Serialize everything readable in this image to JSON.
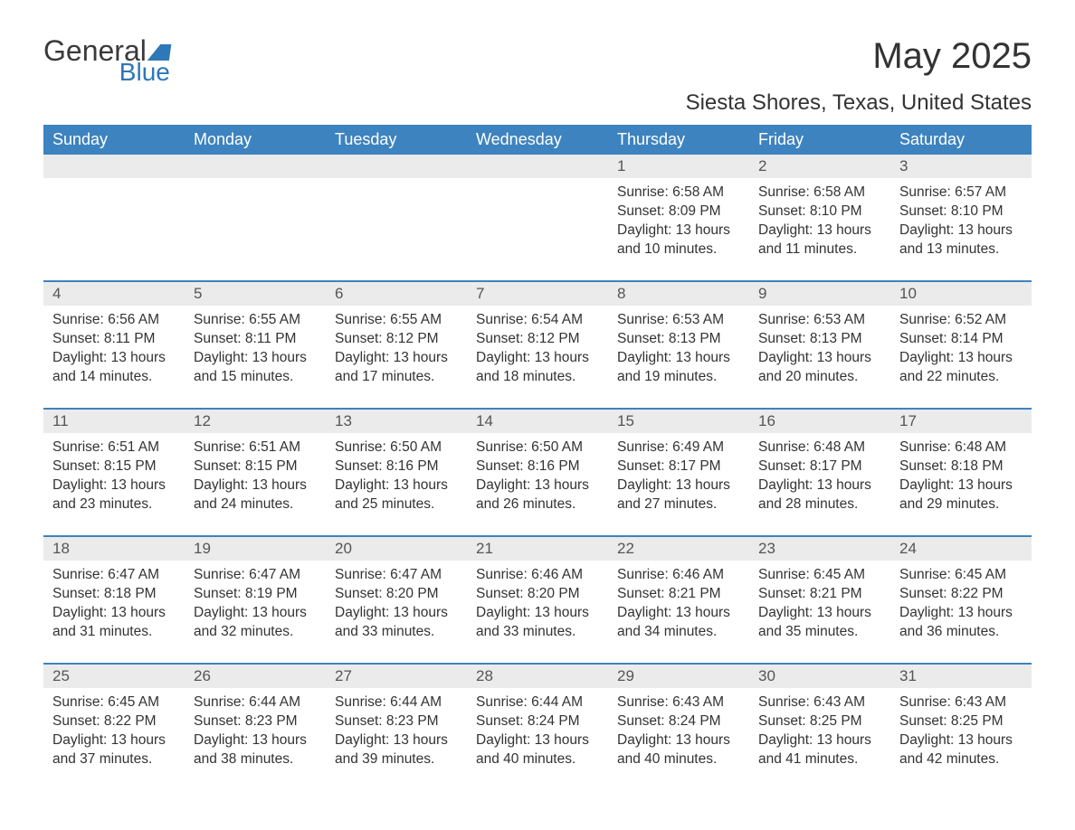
{
  "logo": {
    "word1": "General",
    "word2": "Blue"
  },
  "title": "May 2025",
  "location": "Siesta Shores, Texas, United States",
  "colors": {
    "header_bg": "#3d83bf",
    "header_text": "#ffffff",
    "daynum_bg": "#ebebeb",
    "daynum_text": "#555555",
    "body_text": "#333333",
    "accent": "#2e77b8",
    "page_bg": "#ffffff"
  },
  "day_headers": [
    "Sunday",
    "Monday",
    "Tuesday",
    "Wednesday",
    "Thursday",
    "Friday",
    "Saturday"
  ],
  "weeks": [
    [
      {
        "n": "",
        "sunrise": "",
        "sunset": "",
        "daylight": ""
      },
      {
        "n": "",
        "sunrise": "",
        "sunset": "",
        "daylight": ""
      },
      {
        "n": "",
        "sunrise": "",
        "sunset": "",
        "daylight": ""
      },
      {
        "n": "",
        "sunrise": "",
        "sunset": "",
        "daylight": ""
      },
      {
        "n": "1",
        "sunrise": "Sunrise: 6:58 AM",
        "sunset": "Sunset: 8:09 PM",
        "daylight": "Daylight: 13 hours and 10 minutes."
      },
      {
        "n": "2",
        "sunrise": "Sunrise: 6:58 AM",
        "sunset": "Sunset: 8:10 PM",
        "daylight": "Daylight: 13 hours and 11 minutes."
      },
      {
        "n": "3",
        "sunrise": "Sunrise: 6:57 AM",
        "sunset": "Sunset: 8:10 PM",
        "daylight": "Daylight: 13 hours and 13 minutes."
      }
    ],
    [
      {
        "n": "4",
        "sunrise": "Sunrise: 6:56 AM",
        "sunset": "Sunset: 8:11 PM",
        "daylight": "Daylight: 13 hours and 14 minutes."
      },
      {
        "n": "5",
        "sunrise": "Sunrise: 6:55 AM",
        "sunset": "Sunset: 8:11 PM",
        "daylight": "Daylight: 13 hours and 15 minutes."
      },
      {
        "n": "6",
        "sunrise": "Sunrise: 6:55 AM",
        "sunset": "Sunset: 8:12 PM",
        "daylight": "Daylight: 13 hours and 17 minutes."
      },
      {
        "n": "7",
        "sunrise": "Sunrise: 6:54 AM",
        "sunset": "Sunset: 8:12 PM",
        "daylight": "Daylight: 13 hours and 18 minutes."
      },
      {
        "n": "8",
        "sunrise": "Sunrise: 6:53 AM",
        "sunset": "Sunset: 8:13 PM",
        "daylight": "Daylight: 13 hours and 19 minutes."
      },
      {
        "n": "9",
        "sunrise": "Sunrise: 6:53 AM",
        "sunset": "Sunset: 8:13 PM",
        "daylight": "Daylight: 13 hours and 20 minutes."
      },
      {
        "n": "10",
        "sunrise": "Sunrise: 6:52 AM",
        "sunset": "Sunset: 8:14 PM",
        "daylight": "Daylight: 13 hours and 22 minutes."
      }
    ],
    [
      {
        "n": "11",
        "sunrise": "Sunrise: 6:51 AM",
        "sunset": "Sunset: 8:15 PM",
        "daylight": "Daylight: 13 hours and 23 minutes."
      },
      {
        "n": "12",
        "sunrise": "Sunrise: 6:51 AM",
        "sunset": "Sunset: 8:15 PM",
        "daylight": "Daylight: 13 hours and 24 minutes."
      },
      {
        "n": "13",
        "sunrise": "Sunrise: 6:50 AM",
        "sunset": "Sunset: 8:16 PM",
        "daylight": "Daylight: 13 hours and 25 minutes."
      },
      {
        "n": "14",
        "sunrise": "Sunrise: 6:50 AM",
        "sunset": "Sunset: 8:16 PM",
        "daylight": "Daylight: 13 hours and 26 minutes."
      },
      {
        "n": "15",
        "sunrise": "Sunrise: 6:49 AM",
        "sunset": "Sunset: 8:17 PM",
        "daylight": "Daylight: 13 hours and 27 minutes."
      },
      {
        "n": "16",
        "sunrise": "Sunrise: 6:48 AM",
        "sunset": "Sunset: 8:17 PM",
        "daylight": "Daylight: 13 hours and 28 minutes."
      },
      {
        "n": "17",
        "sunrise": "Sunrise: 6:48 AM",
        "sunset": "Sunset: 8:18 PM",
        "daylight": "Daylight: 13 hours and 29 minutes."
      }
    ],
    [
      {
        "n": "18",
        "sunrise": "Sunrise: 6:47 AM",
        "sunset": "Sunset: 8:18 PM",
        "daylight": "Daylight: 13 hours and 31 minutes."
      },
      {
        "n": "19",
        "sunrise": "Sunrise: 6:47 AM",
        "sunset": "Sunset: 8:19 PM",
        "daylight": "Daylight: 13 hours and 32 minutes."
      },
      {
        "n": "20",
        "sunrise": "Sunrise: 6:47 AM",
        "sunset": "Sunset: 8:20 PM",
        "daylight": "Daylight: 13 hours and 33 minutes."
      },
      {
        "n": "21",
        "sunrise": "Sunrise: 6:46 AM",
        "sunset": "Sunset: 8:20 PM",
        "daylight": "Daylight: 13 hours and 33 minutes."
      },
      {
        "n": "22",
        "sunrise": "Sunrise: 6:46 AM",
        "sunset": "Sunset: 8:21 PM",
        "daylight": "Daylight: 13 hours and 34 minutes."
      },
      {
        "n": "23",
        "sunrise": "Sunrise: 6:45 AM",
        "sunset": "Sunset: 8:21 PM",
        "daylight": "Daylight: 13 hours and 35 minutes."
      },
      {
        "n": "24",
        "sunrise": "Sunrise: 6:45 AM",
        "sunset": "Sunset: 8:22 PM",
        "daylight": "Daylight: 13 hours and 36 minutes."
      }
    ],
    [
      {
        "n": "25",
        "sunrise": "Sunrise: 6:45 AM",
        "sunset": "Sunset: 8:22 PM",
        "daylight": "Daylight: 13 hours and 37 minutes."
      },
      {
        "n": "26",
        "sunrise": "Sunrise: 6:44 AM",
        "sunset": "Sunset: 8:23 PM",
        "daylight": "Daylight: 13 hours and 38 minutes."
      },
      {
        "n": "27",
        "sunrise": "Sunrise: 6:44 AM",
        "sunset": "Sunset: 8:23 PM",
        "daylight": "Daylight: 13 hours and 39 minutes."
      },
      {
        "n": "28",
        "sunrise": "Sunrise: 6:44 AM",
        "sunset": "Sunset: 8:24 PM",
        "daylight": "Daylight: 13 hours and 40 minutes."
      },
      {
        "n": "29",
        "sunrise": "Sunrise: 6:43 AM",
        "sunset": "Sunset: 8:24 PM",
        "daylight": "Daylight: 13 hours and 40 minutes."
      },
      {
        "n": "30",
        "sunrise": "Sunrise: 6:43 AM",
        "sunset": "Sunset: 8:25 PM",
        "daylight": "Daylight: 13 hours and 41 minutes."
      },
      {
        "n": "31",
        "sunrise": "Sunrise: 6:43 AM",
        "sunset": "Sunset: 8:25 PM",
        "daylight": "Daylight: 13 hours and 42 minutes."
      }
    ]
  ]
}
